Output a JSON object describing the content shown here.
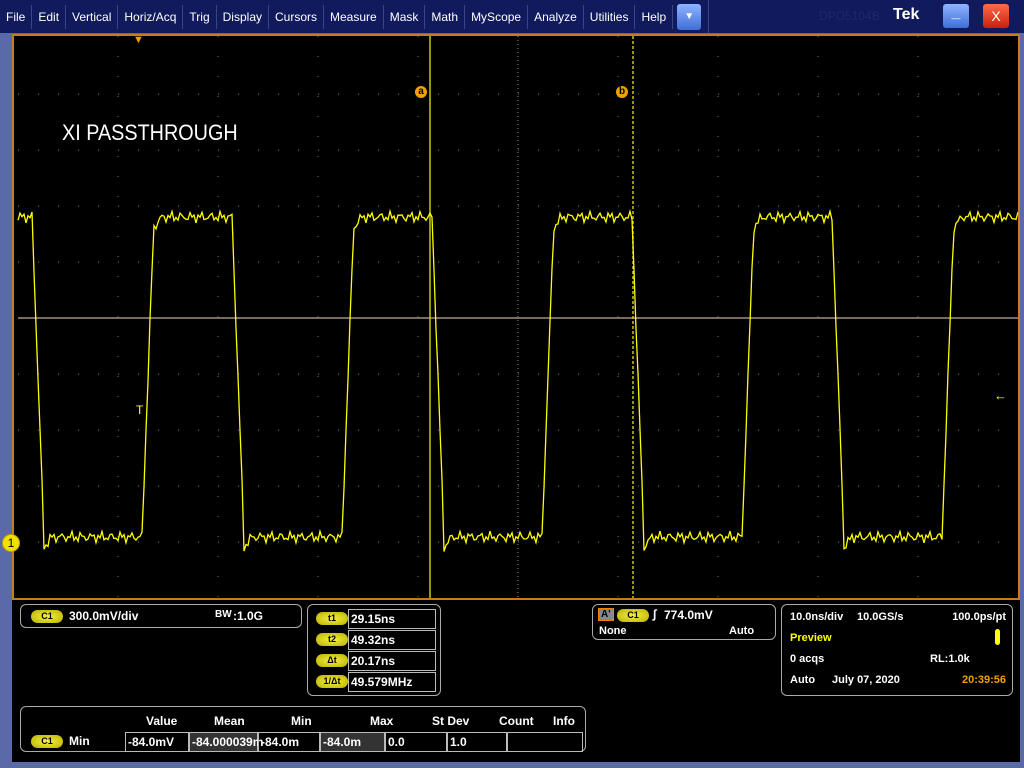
{
  "menu": [
    "File",
    "Edit",
    "Vertical",
    "Horiz/Acq",
    "Trig",
    "Display",
    "Cursors",
    "Measure",
    "Mask",
    "Math",
    "MyScope",
    "Analyze",
    "Utilities",
    "Help"
  ],
  "titlebar": {
    "model": "DPO5104B",
    "brand": "Tek",
    "minimize": "_",
    "close": "X",
    "dropdown": "▼"
  },
  "display": {
    "label": "XI PASSTHROUGH",
    "cursor_a": "a",
    "cursor_b": "b",
    "channel_marker": "1",
    "trigger_marker": "T"
  },
  "colors": {
    "waveform": "#ffff00",
    "cursor": "#c8c800",
    "border": "#c87a1e",
    "time": "#f0a000"
  },
  "channel": {
    "name": "C1",
    "scale": "300.0mV/div",
    "bw_label": "BW",
    "bw": ":1.0G"
  },
  "cursors": [
    {
      "label": "t1",
      "value": "29.15ns"
    },
    {
      "label": "t2",
      "value": "49.32ns"
    },
    {
      "label": "Δt",
      "value": "20.17ns"
    },
    {
      "label": "1/Δt",
      "value": "49.579MHz"
    }
  ],
  "trigger": {
    "tag": "A'",
    "source": "C1",
    "slope": "rising-edge-icon",
    "level": "774.0mV",
    "coupling": "None",
    "mode": "Auto"
  },
  "acq": {
    "timebase": "10.0ns/div",
    "rate": "10.0GS/s",
    "res": "100.0ps/pt",
    "state": "Preview",
    "acqs": "0 acqs",
    "rl": "RL:1.0k",
    "mode": "Auto",
    "date": "July 07, 2020",
    "time": "20:39:56"
  },
  "measure": {
    "headers": [
      "Value",
      "Mean",
      "Min",
      "Max",
      "St Dev",
      "Count",
      "Info"
    ],
    "source": "C1",
    "type": "Min",
    "values": [
      "-84.0mV",
      "-84.000039m",
      "-84.0m",
      "-84.0m",
      "0.0",
      "1.0",
      ""
    ]
  }
}
